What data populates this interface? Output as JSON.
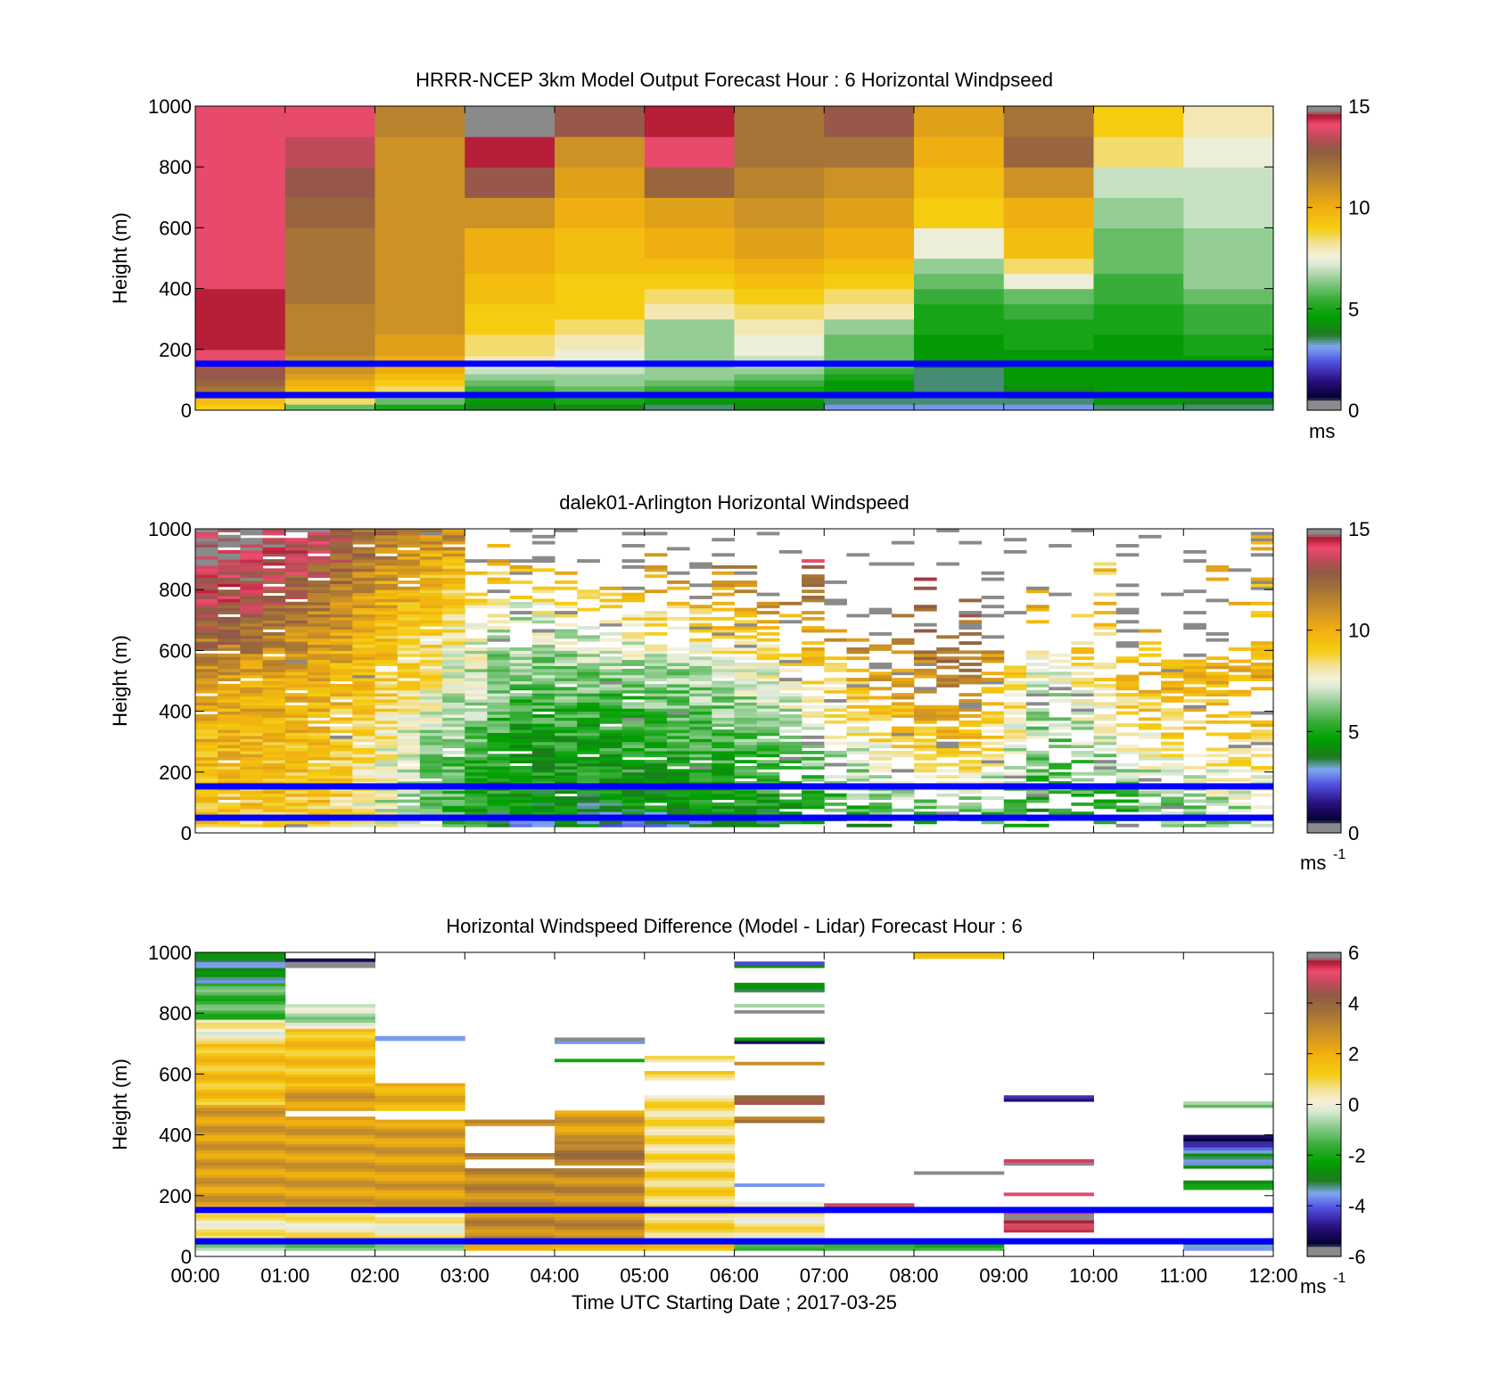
{
  "chart_data": [
    {
      "type": "heatmap",
      "title": "HRRR-NCEP 3km Model Output   Forecast Hour : 6 Horizontal Windpseed",
      "ylabel": "Height (m)",
      "xlabel": "",
      "ylim": [
        0,
        1000
      ],
      "xlim": [
        0,
        12
      ],
      "y_ticks": [
        "0",
        "200",
        "400",
        "600",
        "800",
        "1000"
      ],
      "x_tick_labels_visible": false,
      "z_range": [
        0,
        15
      ],
      "colorbar_ticks": [
        "0",
        "5",
        "10",
        "15"
      ],
      "colorbar_unit": "ms",
      "colorbar_unit_sup": "",
      "reference_lines_m": [
        50,
        153
      ],
      "height_levels_m": [
        20,
        40,
        60,
        80,
        100,
        120,
        140,
        160,
        180,
        200,
        250,
        300,
        350,
        400,
        450,
        500,
        600,
        700,
        800,
        900,
        1000
      ],
      "hours": [
        0,
        1,
        2,
        3,
        4,
        5,
        6,
        7,
        8,
        9,
        10,
        11
      ],
      "values": [
        [
          9,
          9.5,
          11,
          12,
          12.5,
          13,
          13,
          13.5,
          14,
          14,
          14.5,
          14.5,
          14.5,
          14.5,
          14,
          14,
          14,
          14,
          14,
          14,
          14
        ],
        [
          6,
          8.5,
          9,
          9.5,
          10,
          10.5,
          11,
          11,
          11,
          11.5,
          11.5,
          11.5,
          11.5,
          12,
          12,
          12,
          12,
          12.5,
          13,
          13.5,
          14
        ],
        [
          5,
          6,
          7.5,
          8.5,
          9,
          9.5,
          10,
          10,
          10,
          10.5,
          10.5,
          11,
          11,
          11,
          11,
          11,
          11,
          11,
          11,
          11,
          11.5
        ],
        [
          4,
          4.5,
          5,
          5.5,
          6,
          6.5,
          7,
          7.5,
          8,
          8.5,
          8.5,
          9,
          9,
          9.5,
          9.5,
          10,
          10,
          11,
          13,
          14.5,
          15
        ],
        [
          4,
          5,
          5.5,
          6,
          6.5,
          6.5,
          7,
          7,
          7.5,
          7.5,
          8,
          8.5,
          9,
          9,
          9,
          9.5,
          9.5,
          10,
          10.5,
          11,
          13
        ],
        [
          3.5,
          4.5,
          5,
          5.5,
          6,
          6.5,
          6.5,
          6.5,
          6.5,
          6.5,
          6.5,
          6.5,
          8,
          8.5,
          9,
          9.5,
          10,
          10.5,
          12.5,
          14,
          14.5
        ],
        [
          4,
          4.5,
          5,
          5,
          5.5,
          6,
          6.5,
          7,
          7,
          7.5,
          7.5,
          8,
          8.5,
          9,
          9.5,
          10,
          10.5,
          11,
          11.5,
          12,
          12
        ],
        [
          3,
          3.5,
          4,
          4.5,
          4.5,
          5,
          5.5,
          6,
          6,
          6,
          6,
          6.5,
          8,
          8.5,
          9,
          9.5,
          10,
          10.5,
          11,
          12,
          13
        ],
        [
          3,
          3.5,
          3.5,
          3.5,
          3.5,
          3.5,
          3.5,
          4,
          4.5,
          4.5,
          4.5,
          5,
          5,
          5.5,
          6,
          6.5,
          7.5,
          9,
          9.5,
          10,
          10.5
        ],
        [
          3,
          3.5,
          4,
          4,
          4.5,
          4.5,
          4.5,
          4.5,
          4.5,
          4.5,
          5,
          5,
          5.5,
          6,
          7.5,
          8.5,
          9.5,
          10,
          11,
          12.5,
          12
        ],
        [
          3.5,
          4.5,
          4.5,
          4.5,
          4.5,
          4.5,
          4.5,
          4.5,
          4.5,
          4.5,
          4.5,
          5,
          5,
          5.5,
          5.5,
          6,
          6,
          6.5,
          7,
          8.5,
          9
        ],
        [
          3.5,
          4,
          4.5,
          4.5,
          4.5,
          4.5,
          4.5,
          4.5,
          4.5,
          5,
          5,
          5.5,
          5.5,
          6,
          6.5,
          6.5,
          6.5,
          7,
          7,
          7.5,
          8
        ]
      ]
    },
    {
      "type": "heatmap",
      "title": "dalek01-Arlington  Horizontal Windspeed",
      "ylabel": "Height (m)",
      "xlabel": "",
      "ylim": [
        0,
        1000
      ],
      "xlim": [
        0,
        12
      ],
      "y_ticks": [
        "0",
        "200",
        "400",
        "600",
        "800",
        "1000"
      ],
      "x_tick_labels_visible": false,
      "z_range": [
        0,
        15
      ],
      "colorbar_ticks": [
        "0",
        "5",
        "10",
        "15"
      ],
      "colorbar_unit": "ms",
      "colorbar_unit_sup": "-1",
      "reference_lines_m": [
        50,
        153
      ],
      "time_step_h": 0.25,
      "height_step_m": 20,
      "profiles_hourly_midpoints": [
        {
          "hour": 0.5,
          "profile": [
            [
              0,
              9
            ],
            [
              200,
              9.5
            ],
            [
              500,
              10.5
            ],
            [
              700,
              13
            ],
            [
              850,
              14
            ],
            [
              1000,
              15
            ]
          ]
        },
        {
          "hour": 1.5,
          "profile": [
            [
              0,
              9
            ],
            [
              300,
              9.5
            ],
            [
              500,
              10
            ],
            [
              700,
              11
            ],
            [
              850,
              12.5
            ],
            [
              1000,
              14
            ]
          ]
        },
        {
          "hour": 2.5,
          "profile": [
            [
              0,
              7
            ],
            [
              100,
              6
            ],
            [
              300,
              7
            ],
            [
              500,
              8.5
            ],
            [
              700,
              9
            ],
            [
              850,
              10
            ],
            [
              1000,
              11
            ]
          ]
        },
        {
          "hour": 3.5,
          "profile": [
            [
              0,
              3.5
            ],
            [
              100,
              4.5
            ],
            [
              300,
              5
            ],
            [
              500,
              6
            ],
            [
              700,
              7
            ],
            [
              850,
              9
            ],
            [
              1000,
              12
            ]
          ]
        },
        {
          "hour": 4.5,
          "profile": [
            [
              0,
              3
            ],
            [
              100,
              4.5
            ],
            [
              300,
              5
            ],
            [
              500,
              6
            ],
            [
              700,
              8
            ],
            [
              850,
              11
            ],
            [
              1000,
              13
            ]
          ]
        },
        {
          "hour": 5.5,
          "profile": [
            [
              0,
              3.5
            ],
            [
              100,
              4.5
            ],
            [
              300,
              5.5
            ],
            [
              500,
              6.5
            ],
            [
              700,
              9
            ],
            [
              850,
              10.5
            ],
            [
              1000,
              11.5
            ]
          ]
        },
        {
          "hour": 6.5,
          "profile": [
            [
              0,
              4
            ],
            [
              100,
              5
            ],
            [
              300,
              6
            ],
            [
              500,
              7.5
            ],
            [
              700,
              10
            ],
            [
              850,
              12
            ],
            [
              1000,
              13
            ]
          ]
        },
        {
          "hour": 7.5,
          "profile": [
            [
              0,
              4
            ],
            [
              100,
              6
            ],
            [
              300,
              8
            ],
            [
              500,
              10
            ],
            [
              700,
              12
            ],
            [
              850,
              14
            ],
            [
              1000,
              15
            ]
          ]
        },
        {
          "hour": 8.5,
          "profile": [
            [
              0,
              5
            ],
            [
              100,
              7
            ],
            [
              300,
              10
            ],
            [
              500,
              12
            ],
            [
              700,
              13
            ],
            [
              850,
              14
            ],
            [
              1000,
              14
            ]
          ]
        },
        {
          "hour": 9.5,
          "profile": [
            [
              0,
              4
            ],
            [
              100,
              5
            ],
            [
              300,
              6
            ],
            [
              500,
              7
            ],
            [
              700,
              9
            ],
            [
              850,
              10
            ],
            [
              1000,
              11
            ]
          ]
        },
        {
          "hour": 10.5,
          "profile": [
            [
              0,
              5
            ],
            [
              100,
              6
            ],
            [
              300,
              8
            ],
            [
              500,
              10
            ],
            [
              700,
              10
            ],
            [
              850,
              9
            ],
            [
              1000,
              9
            ]
          ]
        },
        {
          "hour": 11.5,
          "profile": [
            [
              0,
              6
            ],
            [
              100,
              7
            ],
            [
              300,
              9
            ],
            [
              500,
              10
            ],
            [
              700,
              10
            ],
            [
              850,
              10
            ],
            [
              1000,
              9.5
            ]
          ]
        }
      ]
    },
    {
      "type": "heatmap",
      "title": "Horizontal Windspeed Difference (Model - Lidar) Forecast Hour : 6",
      "ylabel": "Height (m)",
      "xlabel": "Time UTC  Starting Date ; 2017-03-25",
      "ylim": [
        0,
        1000
      ],
      "xlim": [
        0,
        12
      ],
      "y_ticks": [
        "0",
        "200",
        "400",
        "600",
        "800",
        "1000"
      ],
      "x_ticks": [
        "00:00",
        "01:00",
        "02:00",
        "03:00",
        "04:00",
        "05:00",
        "06:00",
        "07:00",
        "08:00",
        "09:00",
        "10:00",
        "11:00",
        "12:00"
      ],
      "x_tick_labels_visible": true,
      "z_range": [
        -6,
        6
      ],
      "colorbar_ticks": [
        "-6",
        "-4",
        "-2",
        "0",
        "2",
        "4",
        "6"
      ],
      "colorbar_unit": "ms",
      "colorbar_unit_sup": "-1",
      "reference_lines_m": [
        50,
        153
      ],
      "segments": [
        {
          "hour": 0,
          "bands": [
            [
              20,
              60,
              -1
            ],
            [
              60,
              160,
              0.5
            ],
            [
              160,
              500,
              2.5
            ],
            [
              500,
              700,
              1.5
            ],
            [
              700,
              780,
              0.3
            ],
            [
              780,
              900,
              -1.5
            ],
            [
              900,
              1000,
              -3
            ]
          ]
        },
        {
          "hour": 1,
          "bands": [
            [
              20,
              60,
              -1
            ],
            [
              60,
              160,
              0.5
            ],
            [
              160,
              460,
              2.5
            ],
            [
              480,
              560,
              2.5
            ],
            [
              560,
              750,
              1.5
            ],
            [
              750,
              830,
              -0.5
            ],
            [
              950,
              980,
              -5.5
            ]
          ]
        },
        {
          "hour": 2,
          "bands": [
            [
              20,
              60,
              -0.5
            ],
            [
              60,
              160,
              0.3
            ],
            [
              160,
              450,
              2.5
            ],
            [
              480,
              570,
              2
            ],
            [
              710,
              725,
              -3
            ]
          ]
        },
        {
          "hour": 3,
          "bands": [
            [
              20,
              60,
              2.5
            ],
            [
              60,
              290,
              3
            ],
            [
              320,
              340,
              3
            ],
            [
              430,
              450,
              3
            ]
          ]
        },
        {
          "hour": 4,
          "bands": [
            [
              20,
              60,
              2
            ],
            [
              60,
              290,
              3
            ],
            [
              300,
              380,
              3.5
            ],
            [
              380,
              480,
              2.5
            ],
            [
              640,
              650,
              -1.5
            ],
            [
              700,
              710,
              -3
            ],
            [
              710,
              720,
              -5.5
            ]
          ]
        },
        {
          "hour": 5,
          "bands": [
            [
              20,
              60,
              1.5
            ],
            [
              60,
              280,
              1
            ],
            [
              280,
              530,
              0.8
            ],
            [
              580,
              610,
              1
            ],
            [
              640,
              660,
              1
            ]
          ]
        },
        {
          "hour": 6,
          "bands": [
            [
              20,
              60,
              -2
            ],
            [
              60,
              180,
              0.5
            ],
            [
              230,
              240,
              -3
            ],
            [
              440,
              460,
              3.5
            ],
            [
              500,
              530,
              4.5
            ],
            [
              630,
              640,
              3.5
            ],
            [
              700,
              710,
              -5
            ],
            [
              710,
              720,
              -3
            ],
            [
              800,
              810,
              -6
            ],
            [
              820,
              830,
              -1
            ],
            [
              870,
              900,
              -3
            ],
            [
              950,
              960,
              -3
            ],
            [
              960,
              970,
              -4
            ]
          ]
        },
        {
          "hour": 7,
          "bands": [
            [
              20,
              50,
              -2
            ],
            [
              160,
              175,
              5.5
            ]
          ]
        },
        {
          "hour": 8,
          "bands": [
            [
              20,
              40,
              -2
            ],
            [
              270,
              280,
              -6
            ],
            [
              980,
              1000,
              1
            ]
          ]
        },
        {
          "hour": 9,
          "bands": [
            [
              80,
              160,
              5.5
            ],
            [
              200,
              210,
              5.5
            ],
            [
              300,
              320,
              5.5
            ],
            [
              510,
              530,
              -5
            ]
          ]
        },
        {
          "hour": 11,
          "bands": [
            [
              20,
              60,
              -3
            ],
            [
              220,
              250,
              -2.5
            ],
            [
              290,
              340,
              -3
            ],
            [
              340,
              380,
              -4
            ],
            [
              380,
              400,
              -5.5
            ],
            [
              490,
              510,
              -1
            ]
          ]
        }
      ]
    }
  ]
}
